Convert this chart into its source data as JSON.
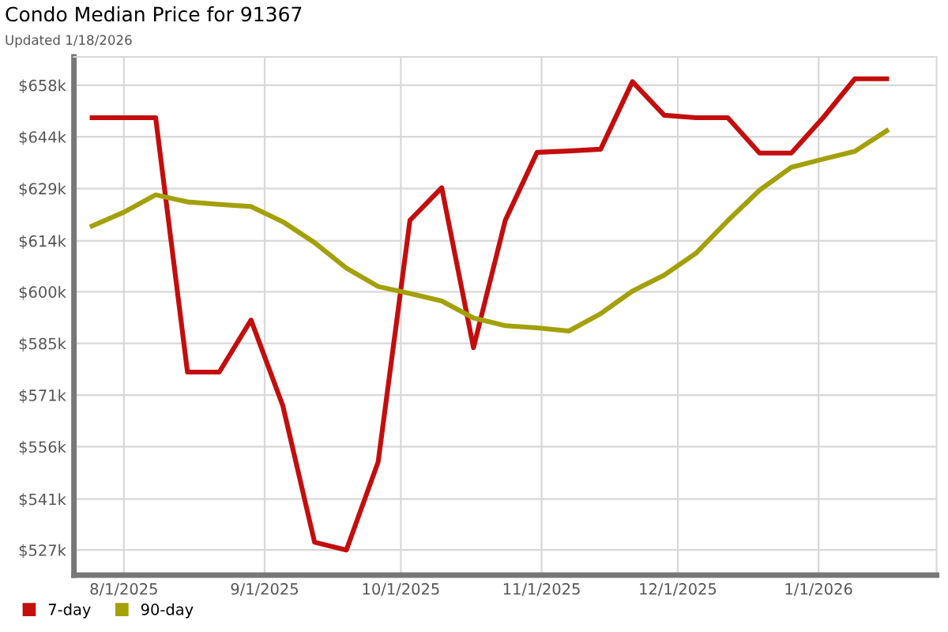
{
  "chart_data": {
    "type": "line",
    "title": "Condo Median Price for 91367",
    "subtitle": "Updated 1/18/2026",
    "x": [
      "2025-07-25",
      "2025-08-01",
      "2025-08-08",
      "2025-08-15",
      "2025-08-22",
      "2025-08-29",
      "2025-09-05",
      "2025-09-12",
      "2025-09-19",
      "2025-09-26",
      "2025-10-03",
      "2025-10-10",
      "2025-10-17",
      "2025-10-24",
      "2025-10-31",
      "2025-11-07",
      "2025-11-14",
      "2025-11-21",
      "2025-11-28",
      "2025-12-05",
      "2025-12-12",
      "2025-12-19",
      "2025-12-26",
      "2026-01-02",
      "2026-01-09",
      "2026-01-16"
    ],
    "series": [
      {
        "name": "7-day",
        "color": "#c40d0d",
        "values": [
          649200,
          649200,
          649200,
          577300,
          577300,
          592000,
          567800,
          529200,
          527000,
          551900,
          620200,
          629400,
          584200,
          620200,
          639400,
          639800,
          640300,
          659400,
          649900,
          649200,
          649200,
          639200,
          639200,
          649200,
          660200,
          660200
        ]
      },
      {
        "name": "90-day",
        "color": "#a3a00a",
        "values": [
          618600,
          622500,
          627400,
          625400,
          624700,
          624100,
          619800,
          613900,
          606700,
          601500,
          599500,
          597400,
          592600,
          590400,
          589800,
          588900,
          593800,
          600200,
          604700,
          610900,
          620100,
          628700,
          635200,
          637500,
          639700,
          645500
        ]
      }
    ],
    "xlim": [
      "2025-07-21",
      "2026-01-27"
    ],
    "xticks": [
      {
        "value": "2025-08-01",
        "label": "8/1/2025"
      },
      {
        "value": "2025-09-01",
        "label": "9/1/2025"
      },
      {
        "value": "2025-10-01",
        "label": "10/1/2025"
      },
      {
        "value": "2025-11-01",
        "label": "11/1/2025"
      },
      {
        "value": "2025-12-01",
        "label": "12/1/2025"
      },
      {
        "value": "2026-01-01",
        "label": "1/1/2026"
      }
    ],
    "ylim": [
      519900,
      666400
    ],
    "yticks": [
      {
        "value": 527000,
        "label": "$527k"
      },
      {
        "value": 541400,
        "label": "$541k"
      },
      {
        "value": 556200,
        "label": "$556k"
      },
      {
        "value": 570800,
        "label": "$571k"
      },
      {
        "value": 585400,
        "label": "$585k"
      },
      {
        "value": 600000,
        "label": "$600k"
      },
      {
        "value": 614400,
        "label": "$614k"
      },
      {
        "value": 629200,
        "label": "$629k"
      },
      {
        "value": 643800,
        "label": "$644k"
      },
      {
        "value": 658400,
        "label": "$658k"
      }
    ],
    "grid": true,
    "legend": "bottom left",
    "marker": "none",
    "line_style": "solid"
  }
}
